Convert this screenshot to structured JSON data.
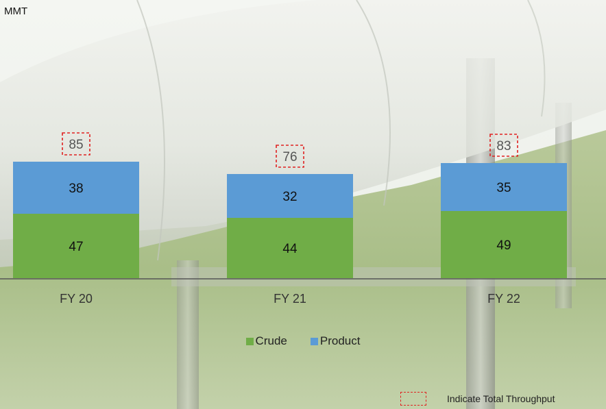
{
  "unit_label": "MMT",
  "colors": {
    "crude": "#70ad47",
    "product": "#5b9bd5",
    "total_box": "#e02020"
  },
  "legend": {
    "crude": "Crude",
    "product": "Product"
  },
  "note": {
    "text": "Indicate Total  Throughput"
  },
  "chart_data": {
    "type": "bar",
    "stacked": true,
    "categories": [
      "FY 20",
      "FY 21",
      "FY 22"
    ],
    "series": [
      {
        "name": "Crude",
        "values": [
          47,
          44,
          49
        ]
      },
      {
        "name": "Product",
        "values": [
          38,
          32,
          35
        ]
      }
    ],
    "totals": [
      85,
      76,
      83
    ],
    "ylabel": "MMT",
    "ylim": [
      0,
      110
    ],
    "grid": false,
    "legend_position": "bottom"
  }
}
